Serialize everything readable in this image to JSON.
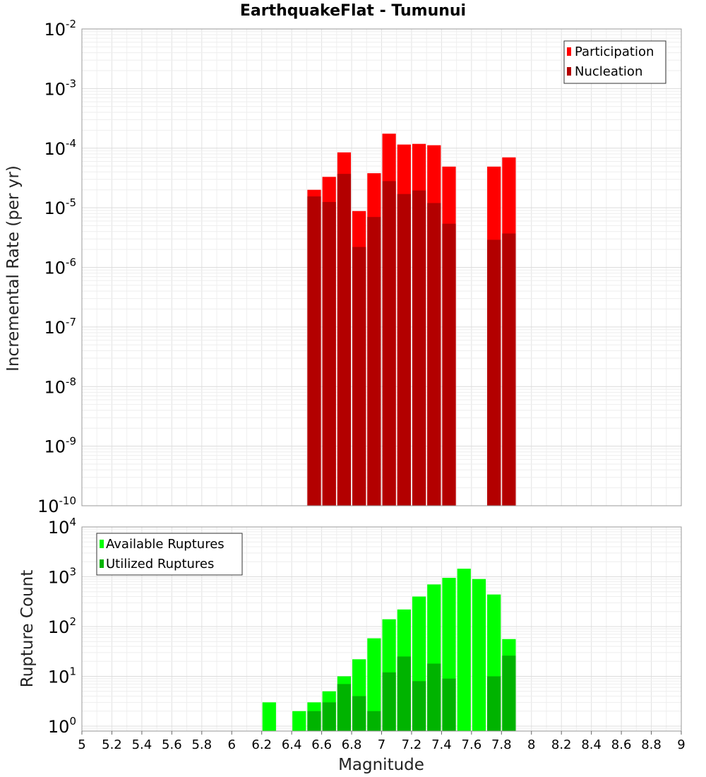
{
  "title": "EarthquakeFlat - Tumunui",
  "colors": {
    "participation": "#ff0000",
    "nucleation": "#b30000",
    "available": "#00ff00",
    "utilized": "#00b300",
    "grid": "#e6e6e6",
    "border": "#999999"
  },
  "chart_data": [
    {
      "type": "bar",
      "title": "EarthquakeFlat - Tumunui",
      "xlabel": "Magnitude",
      "ylabel": "Incremental Rate (per yr)",
      "yscale": "log",
      "xlim": [
        5,
        9
      ],
      "ylim_exponents": [
        -10,
        -2
      ],
      "y_tick_base": "10",
      "y_tick_exponents": [
        "-2",
        "-3",
        "-4",
        "-5",
        "-6",
        "-7",
        "-8",
        "-9",
        "-10"
      ],
      "legend": [
        "Participation",
        "Nucleation"
      ],
      "legend_position": "top-right",
      "bin_width": 0.1,
      "x": [
        6.55,
        6.65,
        6.75,
        6.85,
        6.95,
        7.05,
        7.15,
        7.25,
        7.35,
        7.45,
        7.75,
        7.85
      ],
      "series": [
        {
          "name": "Participation",
          "values": [
            2e-05,
            3.3e-05,
            8.5e-05,
            8.8e-06,
            3.8e-05,
            0.000175,
            0.000115,
            0.000118,
            0.000112,
            4.9e-05,
            4.9e-05,
            7e-05
          ]
        },
        {
          "name": "Nucleation",
          "values": [
            1.55e-05,
            1.25e-05,
            3.7e-05,
            2.2e-06,
            7e-06,
            2.8e-05,
            1.7e-05,
            1.95e-05,
            1.2e-05,
            5.4e-06,
            2.9e-06,
            3.7e-06
          ]
        }
      ]
    },
    {
      "type": "bar",
      "xlabel": "Magnitude",
      "ylabel": "Rupture Count",
      "yscale": "log",
      "xlim": [
        5,
        9
      ],
      "ylim_exponents": [
        -0.1,
        4
      ],
      "y_tick_base": "10",
      "y_tick_exponents": [
        "4",
        "3",
        "2",
        "1",
        "0"
      ],
      "x_tick_labels": [
        "5",
        "5.2",
        "5.4",
        "5.6",
        "5.8",
        "6",
        "6.2",
        "6.4",
        "6.6",
        "6.8",
        "7",
        "7.2",
        "7.4",
        "7.6",
        "7.8",
        "8",
        "8.2",
        "8.4",
        "8.6",
        "8.8",
        "9"
      ],
      "legend": [
        "Available Ruptures",
        "Utilized Ruptures"
      ],
      "legend_position": "top-left",
      "bin_width": 0.1,
      "x": [
        6.25,
        6.45,
        6.55,
        6.65,
        6.75,
        6.85,
        6.95,
        7.05,
        7.15,
        7.25,
        7.35,
        7.45,
        7.55,
        7.65,
        7.75,
        7.85
      ],
      "series": [
        {
          "name": "Available Ruptures",
          "values": [
            3,
            2,
            3,
            5,
            10,
            22,
            58,
            140,
            220,
            400,
            700,
            950,
            1450,
            900,
            440,
            56
          ]
        },
        {
          "name": "Utilized Ruptures",
          "values": [
            null,
            null,
            2,
            3,
            7,
            4,
            2,
            12,
            25,
            8,
            18,
            9,
            null,
            null,
            10,
            26
          ]
        }
      ]
    }
  ]
}
